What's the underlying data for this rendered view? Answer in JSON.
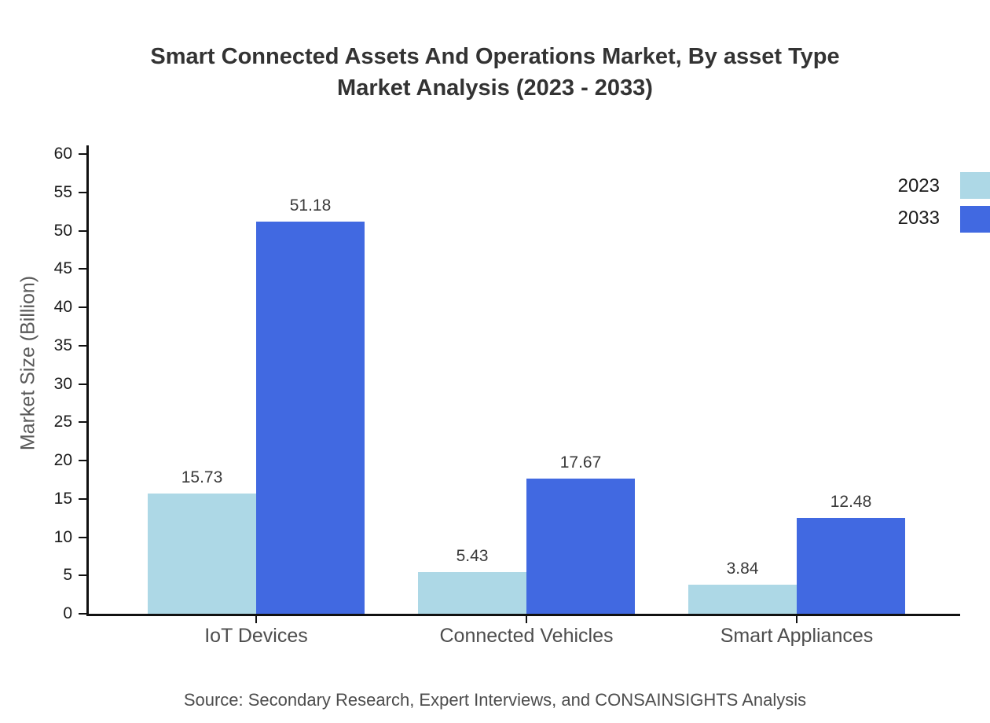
{
  "title": {
    "line1": "Smart Connected Assets And Operations Market, By asset Type",
    "line2": "Market Analysis (2023 - 2033)"
  },
  "source_text": "Source: Secondary Research, Expert Interviews, and CONSAINSIGHTS Analysis",
  "chart_data": {
    "type": "bar",
    "categories": [
      "IoT Devices",
      "Connected Vehicles",
      "Smart Appliances"
    ],
    "series": [
      {
        "name": "2023",
        "color": "#ADD8E6",
        "values": [
          15.73,
          5.43,
          3.84
        ]
      },
      {
        "name": "2033",
        "color": "#4169E1",
        "values": [
          51.18,
          17.67,
          12.48
        ]
      }
    ],
    "title": "Smart Connected Assets And Operations Market, By asset Type Market Analysis (2023 - 2033)",
    "xlabel": "",
    "ylabel": "Market Size (Billion)",
    "ylim": [
      0,
      60
    ],
    "ytick_step": 5,
    "grid": false,
    "legend_position": "upper-right-outside",
    "value_labels": true,
    "axis_color": "#111111"
  }
}
